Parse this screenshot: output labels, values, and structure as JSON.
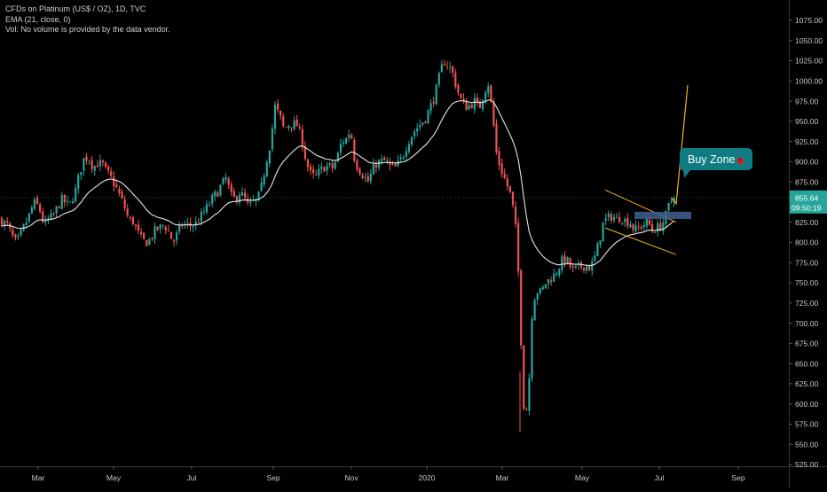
{
  "legend": {
    "title": "CFDs on Platinum (US$ / OZ), 1D, TVC",
    "ema": "EMA (21, close, 0)",
    "vol": "Vol: No volume is provided by the data vendor."
  },
  "price_label": {
    "value": "855.64",
    "countdown": "09:50:19",
    "color": "#26a69a"
  },
  "annotation": {
    "label": "Buy Zone",
    "emoji": "🐞"
  },
  "colors": {
    "up": "#26a69a",
    "down": "#ef5350",
    "ema": "#e6e6e6",
    "pattern": "#f0b429",
    "buy_zone": "#3f5f8f"
  },
  "chart_data": {
    "type": "candlestick",
    "title": "CFDs on Platinum (US$ / OZ), 1D, TVC",
    "ylim": [
      525,
      1085
    ],
    "y_ticks": [
      "1075.00",
      "1050.00",
      "1025.00",
      "1000.00",
      "975.00",
      "950.00",
      "925.00",
      "900.00",
      "875.00",
      "850.00",
      "825.00",
      "800.00",
      "775.00",
      "750.00",
      "725.00",
      "700.00",
      "675.00",
      "650.00",
      "625.00",
      "600.00",
      "575.00",
      "550.00",
      "525.00"
    ],
    "x_ticks": [
      "Mar",
      "May",
      "Jul",
      "Sep",
      "Nov",
      "2020",
      "Mar",
      "May",
      "Jul",
      "Sep"
    ],
    "close_path": [
      [
        0,
        829
      ],
      [
        3,
        825
      ],
      [
        8,
        822
      ],
      [
        14,
        807
      ],
      [
        19,
        798
      ],
      [
        25,
        815
      ],
      [
        31,
        828
      ],
      [
        37,
        846
      ],
      [
        40,
        850
      ],
      [
        45,
        840
      ],
      [
        50,
        820
      ],
      [
        55,
        830
      ],
      [
        60,
        832
      ],
      [
        65,
        845
      ],
      [
        70,
        853
      ],
      [
        78,
        845
      ],
      [
        85,
        864
      ],
      [
        90,
        887
      ],
      [
        95,
        905
      ],
      [
        100,
        905
      ],
      [
        105,
        893
      ],
      [
        110,
        898
      ],
      [
        116,
        896
      ],
      [
        120,
        887
      ],
      [
        125,
        880
      ],
      [
        130,
        870
      ],
      [
        135,
        858
      ],
      [
        140,
        845
      ],
      [
        145,
        828
      ],
      [
        150,
        826
      ],
      [
        155,
        813
      ],
      [
        160,
        803
      ],
      [
        165,
        800
      ],
      [
        170,
        805
      ],
      [
        175,
        815
      ],
      [
        180,
        818
      ],
      [
        185,
        822
      ],
      [
        190,
        813
      ],
      [
        195,
        800
      ],
      [
        200,
        811
      ],
      [
        205,
        822
      ],
      [
        210,
        822
      ],
      [
        215,
        821
      ],
      [
        220,
        822
      ],
      [
        225,
        830
      ],
      [
        230,
        838
      ],
      [
        235,
        846
      ],
      [
        240,
        856
      ],
      [
        245,
        862
      ],
      [
        250,
        872
      ],
      [
        255,
        880
      ],
      [
        260,
        858
      ],
      [
        265,
        853
      ],
      [
        270,
        862
      ],
      [
        275,
        856
      ],
      [
        280,
        844
      ],
      [
        285,
        850
      ],
      [
        290,
        852
      ],
      [
        295,
        870
      ],
      [
        300,
        900
      ],
      [
        305,
        925
      ],
      [
        310,
        968
      ],
      [
        315,
        957
      ],
      [
        320,
        940
      ],
      [
        325,
        946
      ],
      [
        330,
        947
      ],
      [
        335,
        945
      ],
      [
        340,
        928
      ],
      [
        345,
        900
      ],
      [
        350,
        885
      ],
      [
        355,
        880
      ],
      [
        360,
        888
      ],
      [
        365,
        893
      ],
      [
        370,
        895
      ],
      [
        375,
        892
      ],
      [
        380,
        905
      ],
      [
        385,
        925
      ],
      [
        390,
        928
      ],
      [
        395,
        940
      ],
      [
        400,
        900
      ],
      [
        405,
        890
      ],
      [
        410,
        882
      ],
      [
        415,
        875
      ],
      [
        420,
        890
      ],
      [
        425,
        899
      ],
      [
        430,
        900
      ],
      [
        435,
        901
      ],
      [
        440,
        893
      ],
      [
        445,
        892
      ],
      [
        450,
        899
      ],
      [
        455,
        910
      ],
      [
        460,
        925
      ],
      [
        465,
        935
      ],
      [
        470,
        942
      ],
      [
        475,
        948
      ],
      [
        480,
        955
      ],
      [
        485,
        968
      ],
      [
        490,
        982
      ],
      [
        495,
        1005
      ],
      [
        500,
        1025
      ],
      [
        505,
        1020
      ],
      [
        510,
        1010
      ],
      [
        515,
        990
      ],
      [
        520,
        975
      ],
      [
        525,
        968
      ],
      [
        530,
        970
      ],
      [
        535,
        975
      ],
      [
        540,
        965
      ],
      [
        545,
        985
      ],
      [
        550,
        998
      ],
      [
        555,
        960
      ],
      [
        560,
        905
      ],
      [
        565,
        890
      ],
      [
        570,
        875
      ],
      [
        575,
        860
      ],
      [
        580,
        832
      ],
      [
        583,
        790
      ],
      [
        586,
        720
      ],
      [
        588,
        650
      ],
      [
        590,
        600
      ],
      [
        593,
        590
      ],
      [
        596,
        620
      ],
      [
        598,
        680
      ],
      [
        600,
        720
      ],
      [
        603,
        735
      ],
      [
        606,
        740
      ],
      [
        610,
        738
      ],
      [
        615,
        750
      ],
      [
        620,
        755
      ],
      [
        625,
        760
      ],
      [
        630,
        770
      ],
      [
        635,
        780
      ],
      [
        640,
        776
      ],
      [
        645,
        765
      ],
      [
        650,
        768
      ],
      [
        655,
        770
      ],
      [
        660,
        772
      ],
      [
        665,
        768
      ],
      [
        670,
        780
      ],
      [
        675,
        800
      ],
      [
        680,
        825
      ],
      [
        685,
        830
      ],
      [
        690,
        833
      ],
      [
        695,
        828
      ],
      [
        700,
        832
      ],
      [
        705,
        826
      ],
      [
        710,
        825
      ],
      [
        715,
        815
      ],
      [
        720,
        818
      ],
      [
        725,
        822
      ],
      [
        730,
        826
      ],
      [
        735,
        815
      ],
      [
        740,
        818
      ],
      [
        745,
        820
      ],
      [
        750,
        832
      ],
      [
        755,
        850
      ],
      [
        760,
        855.64
      ]
    ],
    "ema_period": 21,
    "pattern": {
      "upper": [
        [
          682,
          865
        ],
        [
          762,
          825
        ]
      ],
      "lower": [
        [
          682,
          818
        ],
        [
          762,
          785
        ]
      ]
    },
    "buy_zone": {
      "x": [
        715,
        779
      ],
      "y": [
        829,
        838
      ]
    },
    "projection": [
      [
        757,
        855
      ],
      [
        762,
        848
      ],
      [
        775,
        995
      ]
    ]
  }
}
